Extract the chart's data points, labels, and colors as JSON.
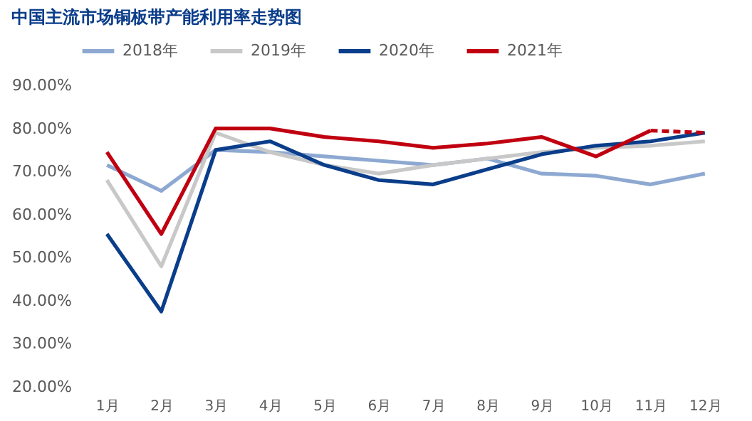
{
  "chart_data": {
    "type": "line",
    "title": "中国主流市场铜板带产能利用率走势图",
    "categories": [
      "1月",
      "2月",
      "3月",
      "4月",
      "5月",
      "6月",
      "7月",
      "8月",
      "9月",
      "10月",
      "11月",
      "12月"
    ],
    "series": [
      {
        "name": "2018年",
        "color": "#8ea9d1",
        "values": [
          71.5,
          65.5,
          75,
          74.5,
          73.5,
          72.5,
          71.5,
          73,
          69.5,
          69,
          67,
          69.5
        ]
      },
      {
        "name": "2019年",
        "color": "#c8c8c8",
        "values": [
          68,
          48,
          79,
          74.5,
          71.5,
          69.5,
          71.5,
          73,
          74.5,
          75.5,
          76,
          77
        ]
      },
      {
        "name": "2020年",
        "color": "#0a3d8a",
        "values": [
          55.5,
          37.5,
          75,
          77,
          71.5,
          68,
          67,
          70.5,
          74,
          76,
          77,
          79
        ]
      },
      {
        "name": "2021年",
        "color": "#c00010",
        "values": [
          74.5,
          55.5,
          80,
          80,
          78,
          77,
          75.5,
          76.5,
          78,
          73.5,
          79.5,
          null
        ]
      },
      {
        "color": "#c00010",
        "line_style": "dashed",
        "values": [
          null,
          null,
          null,
          null,
          null,
          null,
          null,
          null,
          null,
          null,
          79.5,
          79
        ]
      }
    ],
    "ylim": [
      20,
      90
    ],
    "yticks": [
      {
        "value": 20,
        "label": "20.00%"
      },
      {
        "value": 30,
        "label": "30.00%"
      },
      {
        "value": 40,
        "label": "40.00%"
      },
      {
        "value": 50,
        "label": "50.00%"
      },
      {
        "value": 60,
        "label": "60.00%"
      },
      {
        "value": 70,
        "label": "70.00%"
      },
      {
        "value": 80,
        "label": "80.00%"
      },
      {
        "value": 90,
        "label": "90.00%"
      }
    ],
    "grid": false,
    "legend": "top",
    "marker": "none",
    "line_style": "solid"
  }
}
